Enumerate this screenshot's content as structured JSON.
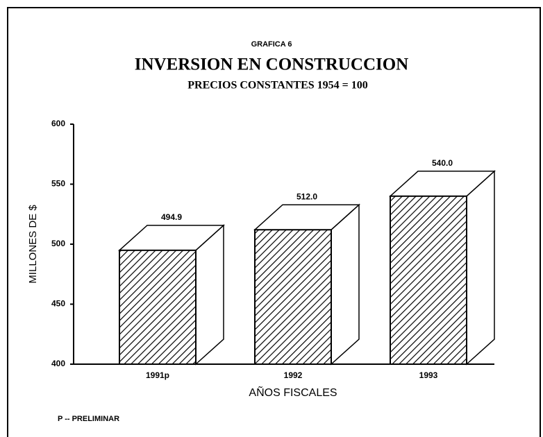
{
  "chart_data": {
    "type": "bar3d",
    "pretitle": "GRAFICA 6",
    "title": "INVERSION EN CONSTRUCCION",
    "subtitle": "PRECIOS CONSTANTES 1954 = 100",
    "y_label": "MILLONES DE $",
    "x_label": "AÑOS FISCALES",
    "footnote": "P -- PRELIMINAR",
    "categories": [
      "1991p",
      "1992",
      "1993"
    ],
    "values": [
      494.9,
      512.0,
      540.0
    ],
    "value_labels": [
      "494.9",
      "512.0",
      "540.0"
    ],
    "color": "#000000",
    "ylim": [
      400,
      600
    ],
    "yticks": [
      400,
      450,
      500,
      550,
      600
    ],
    "grid": false
  }
}
